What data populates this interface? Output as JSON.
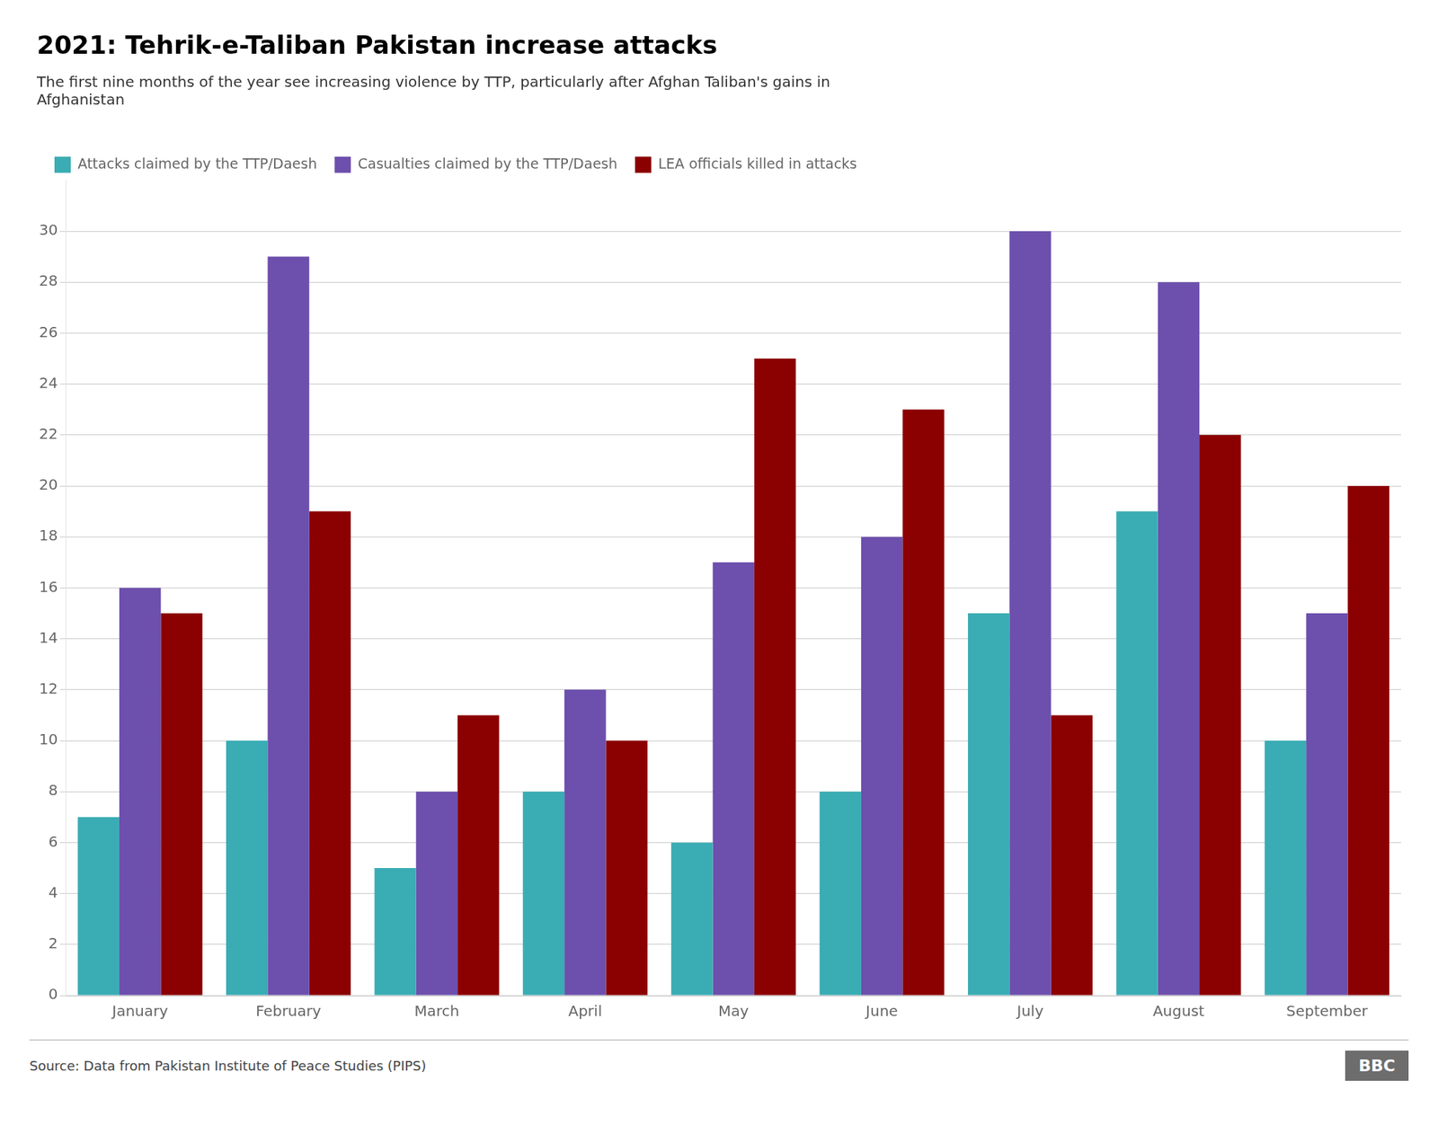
{
  "chart_data": {
    "type": "bar",
    "title": "2021: Tehrik-e-Taliban Pakistan increase attacks",
    "subtitle": "The first nine months of the year see increasing violence by TTP, particularly after Afghan Taliban's gains in\nAfghanistan",
    "annotations": [
      "Source: Data from Pakistan Institute of Peace Studies (PIPS)",
      "BBC"
    ],
    "categories": [
      "January",
      "February",
      "March",
      "April",
      "May",
      "June",
      "July",
      "August",
      "September"
    ],
    "series": [
      {
        "name": "Attacks claimed by the TTP/Daesh",
        "color": "#3aacb4",
        "values": [
          7,
          10,
          5,
          8,
          6,
          8,
          15,
          19,
          10
        ]
      },
      {
        "name": "Casualties claimed by the TTP/Daesh",
        "color": "#6d4fad",
        "values": [
          16,
          29,
          8,
          12,
          17,
          18,
          30,
          28,
          15
        ]
      },
      {
        "name": "LEA officials killed in attacks",
        "color": "#8b0000",
        "values": [
          15,
          19,
          11,
          10,
          25,
          23,
          11,
          22,
          20
        ]
      }
    ],
    "ylim": [
      0,
      32
    ],
    "yticks": [
      0,
      2,
      4,
      6,
      8,
      10,
      12,
      14,
      16,
      18,
      20,
      22,
      24,
      26,
      28,
      30
    ],
    "grid": true,
    "legend": "upper left"
  }
}
